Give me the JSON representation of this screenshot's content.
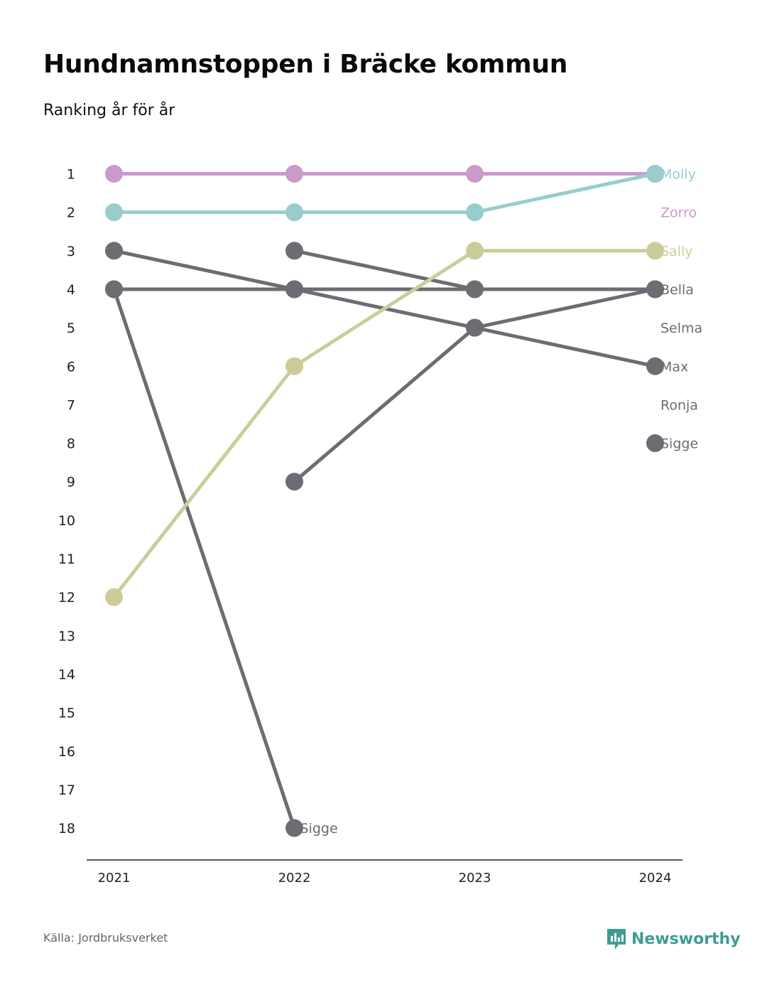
{
  "header": {
    "title": "Hundnamnstoppen i Bräcke kommun",
    "subtitle": "Ranking år för år"
  },
  "footer": {
    "source": "Källa: Jordbruksverket",
    "brand": "Newsworthy",
    "brand_icon": "newsworthy-logo-icon",
    "brand_color": "#3e9c94"
  },
  "chart_data": {
    "type": "line",
    "x": [
      "2021",
      "2022",
      "2023",
      "2024"
    ],
    "y_reversed": true,
    "ylim": [
      1,
      18
    ],
    "y_ticks": [
      "1",
      "2",
      "3",
      "4",
      "5",
      "6",
      "7",
      "8",
      "9",
      "10",
      "11",
      "12",
      "13",
      "14",
      "15",
      "16",
      "17",
      "18"
    ],
    "grid": false,
    "series": [
      {
        "name": "Zorro",
        "color": "#cc99cc",
        "values": [
          1,
          1,
          1,
          1
        ],
        "label_rank": 2
      },
      {
        "name": "Molly",
        "color": "#99cccc",
        "values": [
          2,
          2,
          2,
          1
        ],
        "label_rank": 1
      },
      {
        "name": "Sally",
        "color": "#cccc99",
        "values": [
          12,
          6,
          3,
          3
        ],
        "label_rank": 3
      },
      {
        "name": "Bella",
        "color": "#6d6c73",
        "values": [
          4,
          4,
          4,
          4
        ],
        "label_rank": 4
      },
      {
        "name": "Selma",
        "color": "#6d6c73",
        "values": [
          null,
          9,
          5,
          4
        ],
        "label_rank": 5
      },
      {
        "name": "Max",
        "color": "#6d6c73",
        "values": [
          3,
          4,
          5,
          6
        ],
        "label_rank": 6
      },
      {
        "name": "Ronja",
        "color": "#6d6c73",
        "values": [
          null,
          3,
          4,
          null
        ],
        "label_rank": 7
      },
      {
        "name": "Sigge",
        "color": "#6d6c73",
        "values": [
          4,
          18,
          null,
          8
        ],
        "label_rank": 8
      }
    ],
    "annotations": [
      {
        "text": "Sigge",
        "x": "2022",
        "y": 18,
        "color": "#6d6c73"
      }
    ]
  }
}
